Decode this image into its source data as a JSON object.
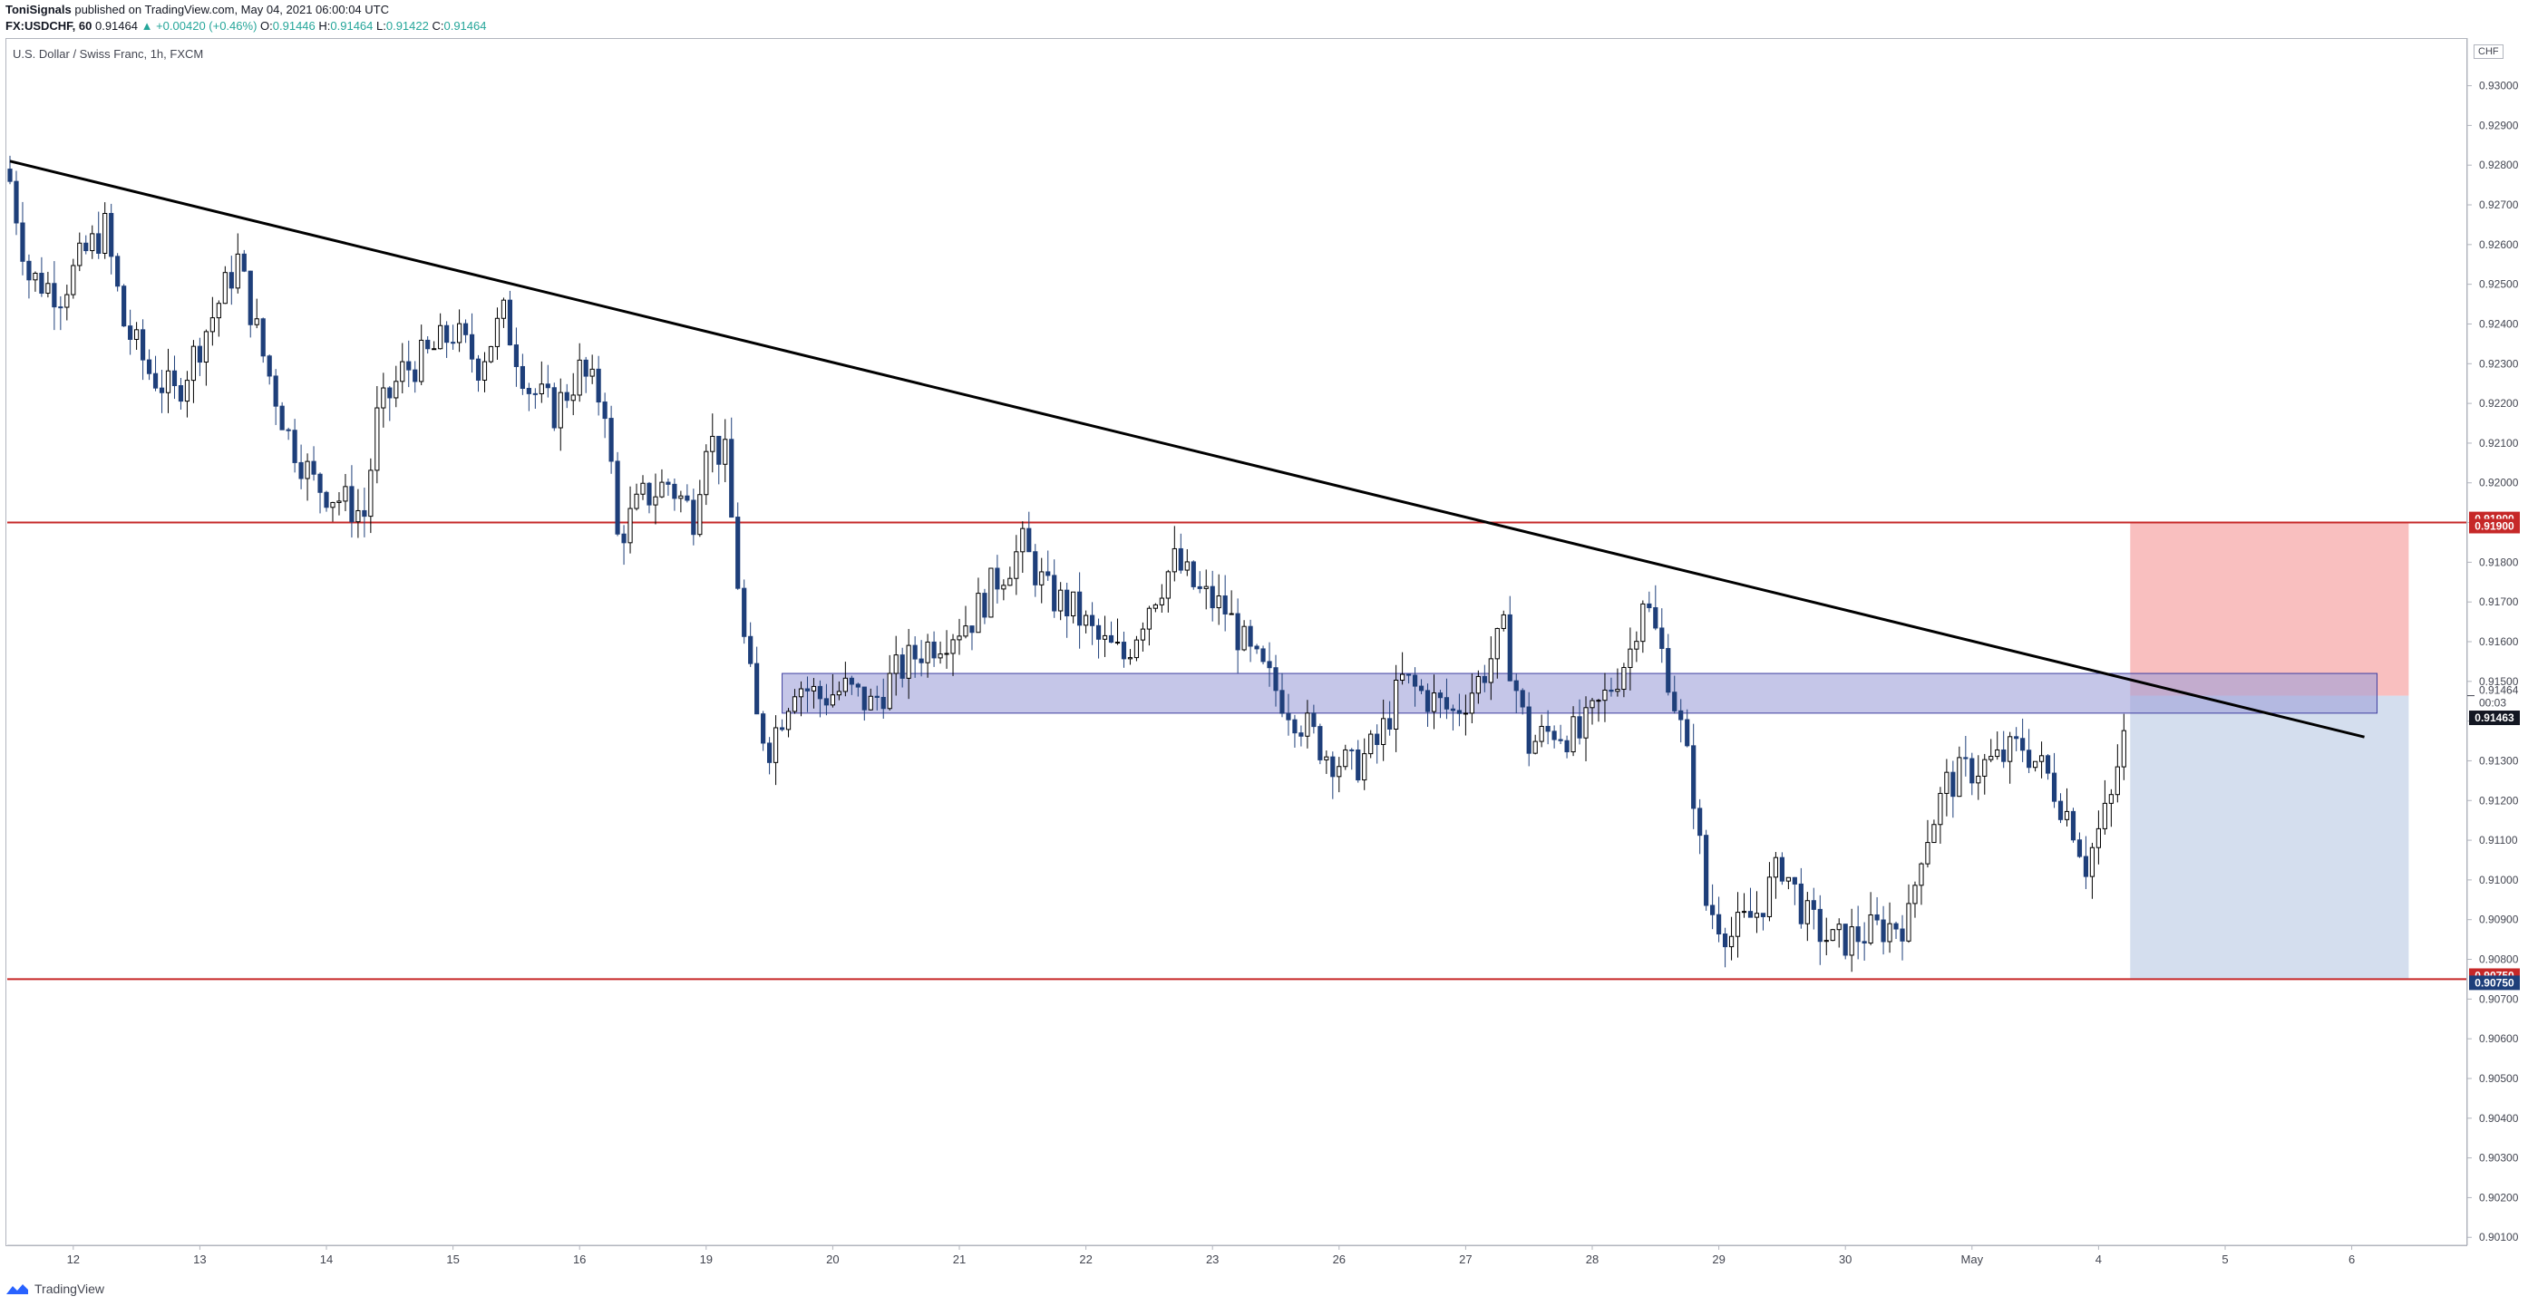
{
  "header": {
    "author": "ToniSignals",
    "published": "published on TradingView.com, May 04, 2021 06:00:04 UTC",
    "symbol": "FX:USDCHF, 60",
    "last": "0.91464",
    "change": "▲ +0.00420 (+0.46%)",
    "o_label": "O:",
    "o": "0.91446",
    "h_label": "H:",
    "h": "0.91464",
    "l_label": "L:",
    "l": "0.91422",
    "c_label": "C:",
    "c": "0.91464"
  },
  "symbol_label": "U.S. Dollar / Swiss Franc, 1h, FXCM",
  "currency": "CHF",
  "footer": {
    "brand": "TradingView"
  },
  "colors": {
    "bear": "#1e3f7a",
    "bull_outline": "#000000",
    "trendline": "#000000",
    "level_line": "#c62828",
    "zone_fill": "#9fa0d8",
    "zone_stroke": "#3f3fa0",
    "stop_fill": "#f8b4b4",
    "target_fill": "#c9d6ea",
    "price_tag": "#131722"
  },
  "chart_data": {
    "type": "candlestick",
    "title": "",
    "xlabel": "",
    "ylabel": "",
    "ylim": [
      0.9008,
      0.9312
    ],
    "y_ticks": [
      "0.93000",
      "0.92900",
      "0.92800",
      "0.92700",
      "0.92600",
      "0.92500",
      "0.92400",
      "0.92300",
      "0.92200",
      "0.92100",
      "0.92000",
      "0.91900",
      "0.91800",
      "0.91700",
      "0.91600",
      "0.91500",
      "0.91400",
      "0.91300",
      "0.91200",
      "0.91100",
      "0.91000",
      "0.90900",
      "0.90800",
      "0.90700",
      "0.90600",
      "0.90500",
      "0.90400",
      "0.90300",
      "0.90200",
      "0.90100"
    ],
    "x_ticks": [
      {
        "label": "12",
        "i": 10
      },
      {
        "label": "13",
        "i": 30
      },
      {
        "label": "14",
        "i": 50
      },
      {
        "label": "15",
        "i": 70
      },
      {
        "label": "16",
        "i": 90
      },
      {
        "label": "19",
        "i": 110
      },
      {
        "label": "20",
        "i": 130
      },
      {
        "label": "21",
        "i": 150
      },
      {
        "label": "22",
        "i": 170
      },
      {
        "label": "23",
        "i": 190
      },
      {
        "label": "26",
        "i": 210
      },
      {
        "label": "27",
        "i": 230
      },
      {
        "label": "28",
        "i": 250
      },
      {
        "label": "29",
        "i": 270
      },
      {
        "label": "30",
        "i": 290
      },
      {
        "label": "May",
        "i": 310
      },
      {
        "label": "4",
        "i": 330
      },
      {
        "label": "5",
        "i": 350
      },
      {
        "label": "6",
        "i": 370
      }
    ],
    "candle_count": 335,
    "trendline": {
      "from": {
        "i": 0,
        "price": 0.9281
      },
      "to": {
        "i": 372,
        "price": 0.9136
      }
    },
    "horizontal_levels": [
      {
        "price": 0.919,
        "label": "0.91900"
      },
      {
        "price": 0.9075,
        "label": "0.90750"
      }
    ],
    "zone": {
      "i_from": 122,
      "i_to": 374,
      "price_top": 0.9152,
      "price_bottom": 0.9142
    },
    "position": {
      "i_from": 335,
      "i_to": 379,
      "entry": 0.91464,
      "stop": 0.919,
      "target": 0.9075
    },
    "last_price": {
      "price": 0.91464,
      "label": "0.91464",
      "countdown": "00:03"
    },
    "bid_price": {
      "price": 0.91463,
      "label": "0.91463"
    },
    "close_path": [
      [
        0,
        0.9276
      ],
      [
        3,
        0.9252
      ],
      [
        8,
        0.9248
      ],
      [
        12,
        0.9258
      ],
      [
        15,
        0.9264
      ],
      [
        18,
        0.924
      ],
      [
        22,
        0.9228
      ],
      [
        26,
        0.9222
      ],
      [
        32,
        0.9242
      ],
      [
        36,
        0.9256
      ],
      [
        40,
        0.9232
      ],
      [
        44,
        0.9212
      ],
      [
        48,
        0.92
      ],
      [
        52,
        0.9196
      ],
      [
        56,
        0.9192
      ],
      [
        58,
        0.9216
      ],
      [
        62,
        0.9228
      ],
      [
        66,
        0.9232
      ],
      [
        70,
        0.9238
      ],
      [
        74,
        0.923
      ],
      [
        78,
        0.9242
      ],
      [
        82,
        0.9224
      ],
      [
        86,
        0.9218
      ],
      [
        90,
        0.9228
      ],
      [
        94,
        0.922
      ],
      [
        96,
        0.9186
      ],
      [
        100,
        0.9196
      ],
      [
        104,
        0.92
      ],
      [
        108,
        0.9192
      ],
      [
        110,
        0.9212
      ],
      [
        113,
        0.9206
      ],
      [
        116,
        0.916
      ],
      [
        118,
        0.914
      ],
      [
        120,
        0.9134
      ],
      [
        124,
        0.915
      ],
      [
        128,
        0.9146
      ],
      [
        132,
        0.9148
      ],
      [
        136,
        0.9144
      ],
      [
        140,
        0.9152
      ],
      [
        144,
        0.9158
      ],
      [
        148,
        0.9162
      ],
      [
        152,
        0.9166
      ],
      [
        156,
        0.9176
      ],
      [
        160,
        0.9184
      ],
      [
        164,
        0.9172
      ],
      [
        168,
        0.9168
      ],
      [
        172,
        0.916
      ],
      [
        176,
        0.9156
      ],
      [
        180,
        0.917
      ],
      [
        184,
        0.918
      ],
      [
        188,
        0.9172
      ],
      [
        192,
        0.9168
      ],
      [
        196,
        0.9156
      ],
      [
        200,
        0.9148
      ],
      [
        204,
        0.914
      ],
      [
        208,
        0.9132
      ],
      [
        212,
        0.9128
      ],
      [
        216,
        0.9134
      ],
      [
        220,
        0.915
      ],
      [
        224,
        0.9146
      ],
      [
        228,
        0.9142
      ],
      [
        232,
        0.915
      ],
      [
        236,
        0.9162
      ],
      [
        240,
        0.9134
      ],
      [
        244,
        0.9138
      ],
      [
        248,
        0.9136
      ],
      [
        252,
        0.9146
      ],
      [
        256,
        0.9158
      ],
      [
        258,
        0.9172
      ],
      [
        262,
        0.9152
      ],
      [
        264,
        0.9138
      ],
      [
        266,
        0.9122
      ],
      [
        268,
        0.9094
      ],
      [
        272,
        0.9086
      ],
      [
        276,
        0.9092
      ],
      [
        280,
        0.9104
      ],
      [
        284,
        0.909
      ],
      [
        288,
        0.9084
      ],
      [
        292,
        0.9086
      ],
      [
        296,
        0.9088
      ],
      [
        300,
        0.909
      ],
      [
        302,
        0.9108
      ],
      [
        306,
        0.9124
      ],
      [
        310,
        0.9128
      ],
      [
        314,
        0.913
      ],
      [
        318,
        0.9134
      ],
      [
        322,
        0.9126
      ],
      [
        326,
        0.9114
      ],
      [
        328,
        0.9104
      ],
      [
        332,
        0.912
      ],
      [
        335,
        0.91464
      ]
    ]
  }
}
